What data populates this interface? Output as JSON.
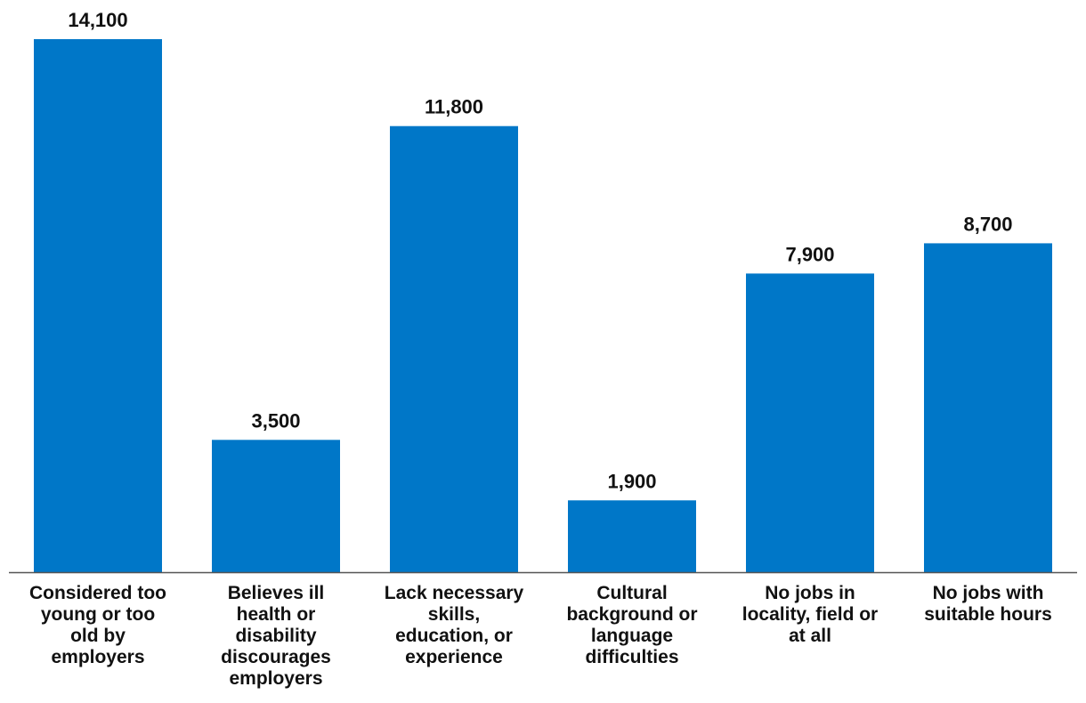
{
  "chart_data": {
    "type": "bar",
    "title": "",
    "xlabel": "",
    "ylabel": "",
    "ylim": [
      0,
      14100
    ],
    "grid": false,
    "legend": "none",
    "bar_color": "#0077c8",
    "axis_color": "#555555",
    "categories": [
      "Considered too young or too old by employers",
      "Believes ill health or disability discourages employers",
      "Lack necessary skills, education, or experience",
      "Cultural background or language difficulties",
      "No jobs in locality, field or at all",
      "No jobs with suitable hours"
    ],
    "category_lines": [
      [
        "Considered too",
        "young or too",
        "old by",
        "employers"
      ],
      [
        "Believes ill",
        "health or",
        "disability",
        "discourages",
        "employers"
      ],
      [
        "Lack necessary",
        "skills,",
        "education, or",
        "experience"
      ],
      [
        "Cultural",
        "background or",
        "language",
        "difficulties"
      ],
      [
        "No jobs in",
        "locality, field or",
        "at all"
      ],
      [
        "No jobs with",
        "suitable hours"
      ]
    ],
    "values": [
      14100,
      3500,
      11800,
      1900,
      7900,
      8700
    ],
    "data_labels": [
      "14,100",
      "3,500",
      "11,800",
      "1,900",
      "7,900",
      "8,700"
    ]
  }
}
